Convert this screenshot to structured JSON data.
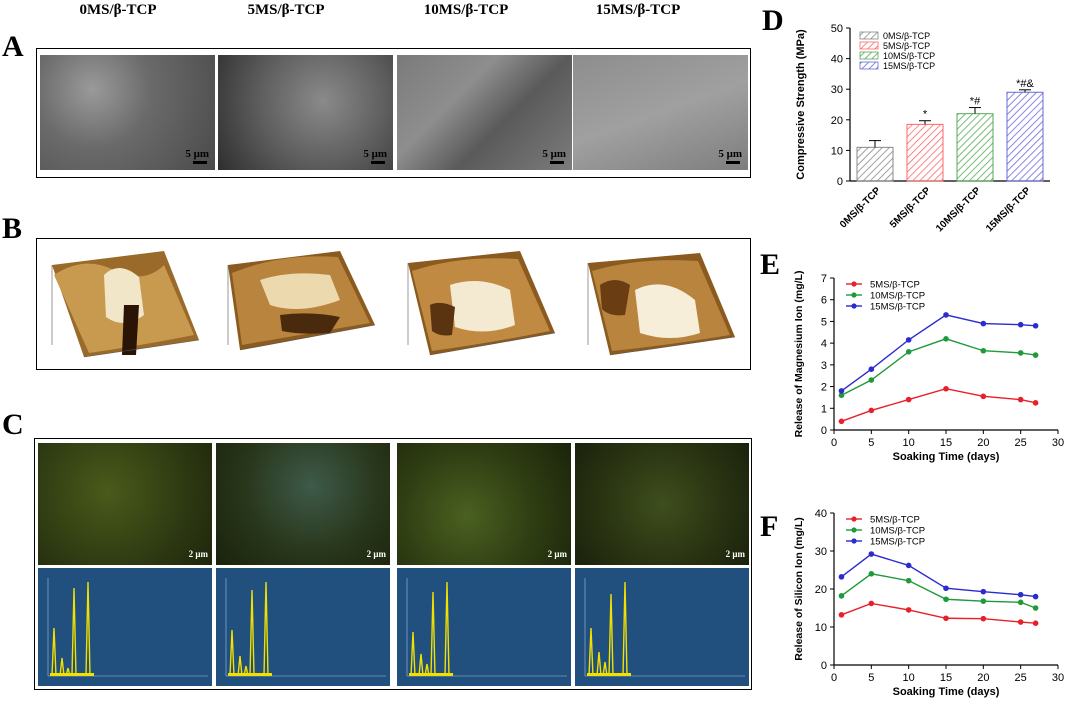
{
  "columns": [
    "0MS/β-TCP",
    "5MS/β-TCP",
    "10MS/β-TCP",
    "15MS/β-TCP"
  ],
  "panels": {
    "A": "A",
    "B": "B",
    "C": "C",
    "D": "D",
    "E": "E",
    "F": "F"
  },
  "sem_scale_label": "5 μm",
  "map_scale_label": "2 μm",
  "chart_data": [
    {
      "type": "bar",
      "panel": "D",
      "categories": [
        "0MS/β-TCP",
        "5MS/β-TCP",
        "10MS/β-TCP",
        "15MS/β-TCP"
      ],
      "values": [
        11,
        18.5,
        22,
        29
      ],
      "errors": [
        2.2,
        1.2,
        2,
        0.8
      ],
      "sig": [
        "",
        "*",
        "*#",
        "*#&"
      ],
      "colors": [
        "#888888",
        "#ff6666",
        "#55aa55",
        "#6a6ad8"
      ],
      "ylabel": "Compressive Strength (MPa)",
      "ylim": [
        0,
        50
      ],
      "yticks": [
        0,
        10,
        20,
        30,
        40,
        50
      ],
      "legend": "top-left"
    },
    {
      "type": "line",
      "panel": "E",
      "x": [
        1,
        5,
        10,
        15,
        20,
        25,
        27
      ],
      "series": [
        {
          "name": "5MS/β-TCP",
          "color": "#e8202a",
          "values": [
            0.4,
            0.9,
            1.4,
            1.9,
            1.55,
            1.4,
            1.25
          ]
        },
        {
          "name": "10MS/β-TCP",
          "color": "#1f9a3a",
          "values": [
            1.6,
            2.3,
            3.6,
            4.2,
            3.65,
            3.55,
            3.45
          ]
        },
        {
          "name": "15MS/β-TCP",
          "color": "#2b2bd0",
          "values": [
            1.8,
            2.8,
            4.15,
            5.3,
            4.9,
            4.85,
            4.8
          ]
        }
      ],
      "xlabel": "Soaking Time (days)",
      "ylabel": "Release of Magnesium Ion (mg/L)",
      "xlim": [
        0,
        30
      ],
      "ylim": [
        0,
        7
      ],
      "xticks": [
        0,
        5,
        10,
        15,
        20,
        25,
        30
      ],
      "yticks": [
        0,
        1,
        2,
        3,
        4,
        5,
        6,
        7
      ],
      "legend": "top-left"
    },
    {
      "type": "line",
      "panel": "F",
      "x": [
        1,
        5,
        10,
        15,
        20,
        25,
        27
      ],
      "series": [
        {
          "name": "5MS/β-TCP",
          "color": "#e8202a",
          "values": [
            13.2,
            16.2,
            14.5,
            12.3,
            12.2,
            11.3,
            11
          ]
        },
        {
          "name": "10MS/β-TCP",
          "color": "#1f9a3a",
          "values": [
            18.2,
            24,
            22.2,
            17.3,
            16.8,
            16.5,
            15
          ]
        },
        {
          "name": "15MS/β-TCP",
          "color": "#2b2bd0",
          "values": [
            23.2,
            29.2,
            26.2,
            20.2,
            19.3,
            18.5,
            18
          ]
        }
      ],
      "xlabel": "Soaking Time (days)",
      "ylabel": "Release of Silicon Ion (mg/L)",
      "xlim": [
        0,
        30
      ],
      "ylim": [
        0,
        40
      ],
      "xticks": [
        0,
        5,
        10,
        15,
        20,
        25,
        30
      ],
      "yticks": [
        0,
        10,
        20,
        30,
        40
      ],
      "legend": "top-left"
    }
  ]
}
